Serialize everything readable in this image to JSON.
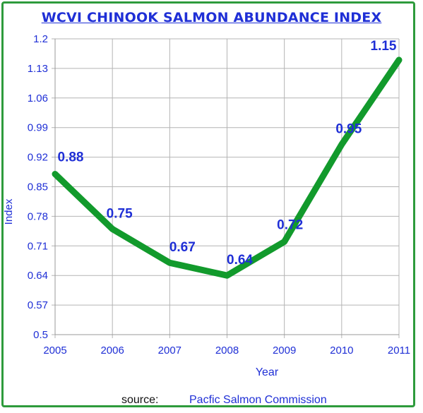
{
  "chart_data": {
    "type": "line",
    "title": "WCVI CHINOOK SALMON ABUNDANCE INDEX",
    "xlabel": "Year",
    "ylabel": "Index",
    "x": [
      2005,
      2006,
      2007,
      2008,
      2009,
      2010,
      2011
    ],
    "x_tick_labels": [
      "2005",
      "2006",
      "2007",
      "2008",
      "2009",
      "2010",
      "2011"
    ],
    "series": [
      {
        "values": [
          0.88,
          0.75,
          0.67,
          0.64,
          0.72,
          0.95,
          1.15
        ],
        "data_labels": [
          "0.88",
          "0.75",
          "0.67",
          "0.64",
          "0.72",
          "0.95",
          "1.15"
        ],
        "color": "#129a2c"
      }
    ],
    "ylim": [
      0.5,
      1.2
    ],
    "y_ticks": [
      0.5,
      0.57,
      0.64,
      0.71,
      0.78,
      0.85,
      0.92,
      0.99,
      1.06,
      1.13,
      1.2
    ],
    "y_tick_labels": [
      "0.5",
      "0.57",
      "0.64",
      "0.71",
      "0.78",
      "0.85",
      "0.92",
      "0.99",
      "1.06",
      "1.13",
      "1.2"
    ],
    "grid": true,
    "legend": "none"
  },
  "source": {
    "label": "source:",
    "value": "Pacfic Salmon Commission"
  },
  "colors": {
    "frame": "#2e9b3c",
    "text_blue": "#1f2fd6",
    "grid": "#b4b4b4",
    "line": "#129a2c"
  }
}
